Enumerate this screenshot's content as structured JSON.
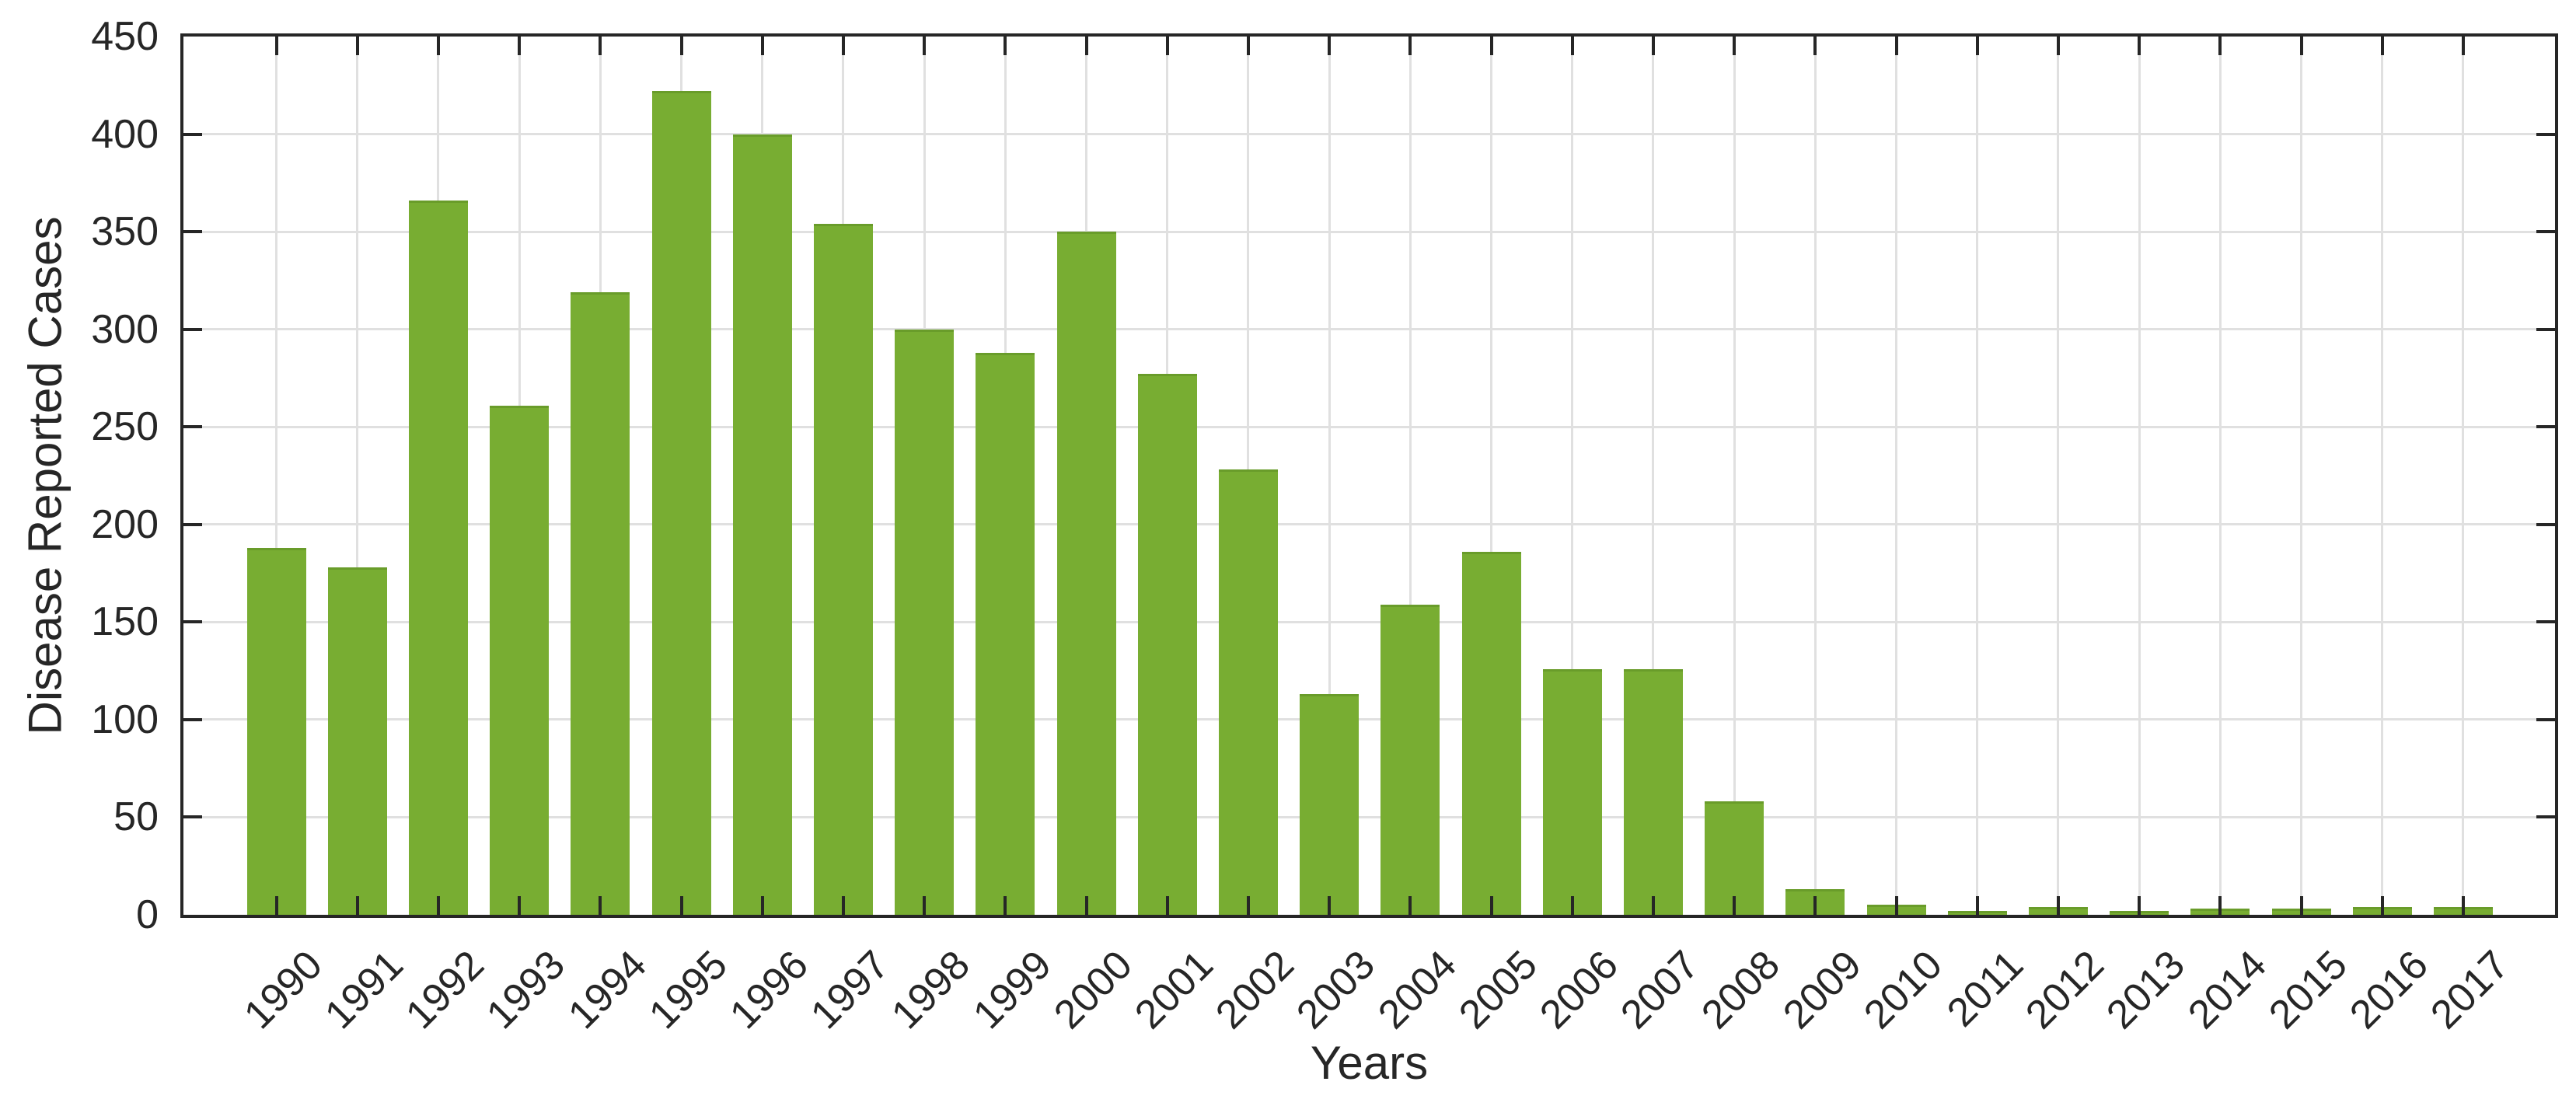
{
  "chart_data": {
    "type": "bar",
    "title": "",
    "xlabel": "Years",
    "ylabel": "Disease Reported Cases",
    "categories": [
      "1990",
      "1991",
      "1992",
      "1993",
      "1994",
      "1995",
      "1996",
      "1997",
      "1998",
      "1999",
      "2000",
      "2001",
      "2002",
      "2003",
      "2004",
      "2005",
      "2006",
      "2007",
      "2008",
      "2009",
      "2010",
      "2011",
      "2012",
      "2013",
      "2014",
      "2015",
      "2016",
      "2017"
    ],
    "values": [
      188,
      178,
      366,
      261,
      319,
      422,
      400,
      354,
      300,
      288,
      350,
      277,
      228,
      113,
      159,
      186,
      126,
      126,
      58,
      13,
      5,
      2,
      4,
      2,
      3,
      3,
      4,
      4
    ],
    "ylim": [
      0,
      450
    ],
    "yticks": [
      0,
      50,
      100,
      150,
      200,
      250,
      300,
      350,
      400,
      450
    ],
    "x_tick_rotation": 45,
    "grid": true,
    "legend": null,
    "bar_color": "#78ad32",
    "bar_edge_color": "#699c2a",
    "axis_color": "#262626",
    "grid_color": "#e0e0e0",
    "text_color": "#262626",
    "background_color": "#ffffff"
  }
}
